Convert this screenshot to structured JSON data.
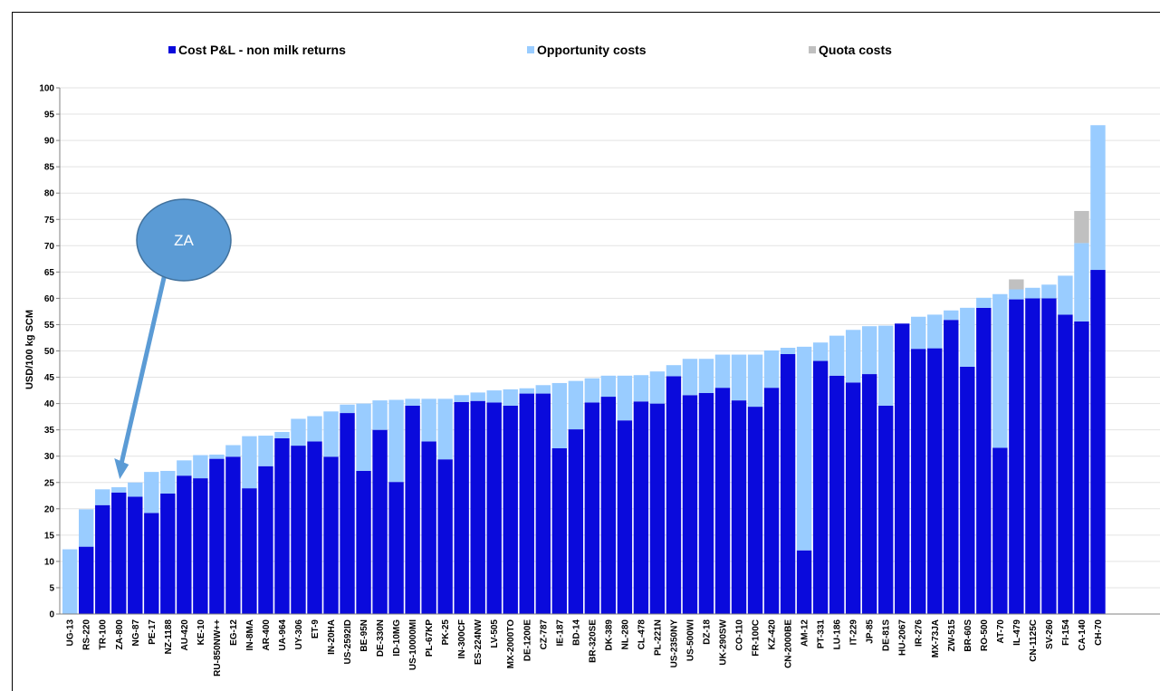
{
  "chart_data": {
    "type": "bar",
    "stacked": true,
    "ylabel": "USD/100 kg SCM",
    "xlabel": "",
    "ylim": [
      0,
      100
    ],
    "yticks": [
      0,
      5,
      10,
      15,
      20,
      25,
      30,
      35,
      40,
      45,
      50,
      55,
      60,
      65,
      70,
      75,
      80,
      85,
      90,
      95,
      100
    ],
    "grid": true,
    "legend_position": "top",
    "categories": [
      "UG-13",
      "RS-220",
      "TR-100",
      "ZA-800",
      "NG-87",
      "PE-17",
      "NZ-1188",
      "AU-420",
      "KE-10",
      "RU-850NW++",
      "EG-12",
      "IN-8MA",
      "AR-400",
      "UA-964",
      "UY-306",
      "ET-9",
      "IN-20HA",
      "US-2592ID",
      "BE-95N",
      "DE-330N",
      "ID-10MG",
      "US-10000MI",
      "PL-67KP",
      "PK-25",
      "IN-300CF",
      "ES-224NW",
      "LV-505",
      "MX-2000TO",
      "DE-1200E",
      "CZ-787",
      "IE-187",
      "BD-14",
      "BR-320SE",
      "DK-389",
      "NL-280",
      "CL-478",
      "PL-221N",
      "US-2350NY",
      "US-500WI",
      "DZ-18",
      "UK-290SW",
      "CO-110",
      "FR-100C",
      "KZ-420",
      "CN-2000BE",
      "AM-12",
      "PT-331",
      "LU-186",
      "IT-229",
      "JP-85",
      "DE-81S",
      "HU-2067",
      "IR-276",
      "MX-73JA",
      "ZW-515",
      "BR-60S",
      "RO-500",
      "AT-70",
      "IL-479",
      "CN-1125C",
      "SV-260",
      "FI-154",
      "CA-140",
      "CH-70"
    ],
    "series": [
      {
        "name": "Cost P&L - non milk returns",
        "color": "#0a0adc",
        "values": [
          0,
          12.8,
          20.7,
          23.1,
          22.3,
          19.2,
          22.9,
          26.3,
          25.8,
          29.5,
          29.9,
          23.9,
          28.1,
          33.4,
          32.0,
          32.8,
          29.9,
          38.2,
          27.2,
          35.0,
          25.1,
          39.6,
          32.8,
          29.4,
          40.3,
          40.5,
          40.2,
          39.6,
          41.9,
          41.9,
          31.5,
          35.1,
          40.2,
          41.3,
          36.8,
          40.4,
          40.0,
          45.2,
          41.6,
          42.0,
          43.0,
          40.6,
          39.4,
          43.0,
          49.4,
          12.1,
          48.1,
          45.3,
          44.0,
          45.6,
          39.6,
          55.2,
          50.4,
          50.5,
          55.9,
          47.0,
          58.2,
          31.6,
          59.8,
          60.0,
          60.0,
          56.9,
          55.6,
          65.4
        ]
      },
      {
        "name": "Opportunity costs",
        "color": "#99ccff",
        "values": [
          12.3,
          7.1,
          3.0,
          1.0,
          2.7,
          7.8,
          4.3,
          2.9,
          4.4,
          0.8,
          2.2,
          9.9,
          5.8,
          1.2,
          5.1,
          4.8,
          8.6,
          1.6,
          12.8,
          5.6,
          15.6,
          1.3,
          8.1,
          11.5,
          1.3,
          1.6,
          2.3,
          3.1,
          1.0,
          1.6,
          12.4,
          9.2,
          4.6,
          4.0,
          8.5,
          5.0,
          6.1,
          2.1,
          6.9,
          6.5,
          6.3,
          8.7,
          9.9,
          7.1,
          1.2,
          38.7,
          3.5,
          7.6,
          10.0,
          9.1,
          15.2,
          0,
          6.1,
          6.4,
          1.8,
          11.2,
          1.9,
          29.2,
          1.9,
          2.0,
          2.6,
          7.4,
          14.9,
          27.5
        ]
      },
      {
        "name": "Quota costs",
        "color": "#c0c0c0",
        "values": [
          0,
          0,
          0,
          0,
          0,
          0,
          0,
          0,
          0,
          0,
          0,
          0,
          0,
          0,
          0,
          0,
          0,
          0,
          0,
          0,
          0,
          0,
          0,
          0,
          0,
          0,
          0,
          0,
          0,
          0,
          0,
          0,
          0,
          0,
          0,
          0,
          0,
          0,
          0,
          0,
          0,
          0,
          0,
          0,
          0,
          0,
          0,
          0,
          0,
          0,
          0,
          0,
          0,
          0,
          0,
          0,
          0,
          0,
          1.9,
          0,
          0,
          0,
          6.1,
          0
        ]
      }
    ],
    "annotations": [
      {
        "type": "callout",
        "text": "ZA",
        "target": "ZA-800"
      }
    ]
  }
}
